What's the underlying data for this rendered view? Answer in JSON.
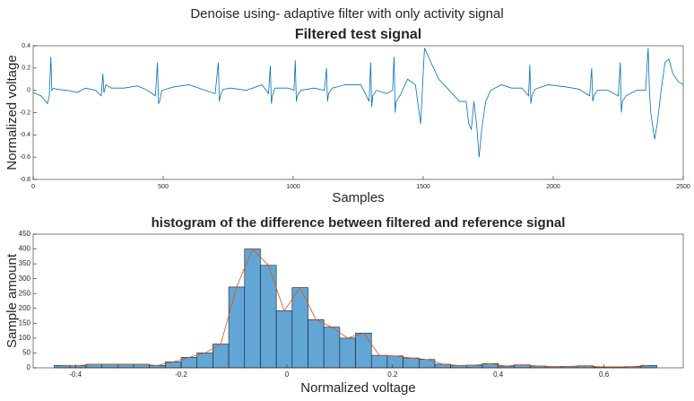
{
  "title": "Denoise using- adaptive filter with only activity signal",
  "chart_data": [
    {
      "type": "line",
      "title": "Filtered test signal",
      "x_label": "Samples",
      "y_label": "Normalized voltage",
      "color": "#0072bd",
      "x": [
        0,
        30,
        55,
        62,
        68,
        72,
        78,
        90,
        130,
        170,
        200,
        240,
        262,
        268,
        272,
        280,
        300,
        350,
        400,
        440,
        470,
        478,
        482,
        486,
        495,
        540,
        600,
        660,
        700,
        712,
        716,
        720,
        730,
        760,
        820,
        880,
        905,
        912,
        916,
        920,
        930,
        980,
        1003,
        1008,
        1012,
        1016,
        1030,
        1080,
        1120,
        1128,
        1132,
        1136,
        1150,
        1200,
        1260,
        1292,
        1298,
        1302,
        1306,
        1320,
        1360,
        1382,
        1388,
        1392,
        1396,
        1410,
        1440,
        1470,
        1490,
        1505,
        1530,
        1560,
        1600,
        1640,
        1665,
        1675,
        1685,
        1695,
        1705,
        1715,
        1725,
        1740,
        1760,
        1800,
        1840,
        1880,
        1905,
        1910,
        1914,
        1918,
        1930,
        1980,
        2050,
        2100,
        2140,
        2148,
        2152,
        2156,
        2170,
        2210,
        2250,
        2258,
        2262,
        2266,
        2280,
        2320,
        2355,
        2365,
        2370,
        2375,
        2390,
        2400,
        2415,
        2430,
        2445,
        2460,
        2480,
        2500
      ],
      "y": [
        -0.02,
        -0.05,
        -0.12,
        -0.05,
        0.3,
        0,
        0.02,
        0.01,
        0,
        -0.02,
        0.02,
        0,
        -0.05,
        0.15,
        -0.02,
        0.05,
        0.02,
        0.02,
        0.04,
        0,
        -0.05,
        0.25,
        -0.12,
        -0.1,
        0,
        0.03,
        0.05,
        0,
        -0.03,
        0.25,
        -0.1,
        -0.05,
        0.01,
        0.02,
        0,
        0.05,
        -0.03,
        0.22,
        -0.12,
        -0.05,
        0.02,
        0.02,
        0,
        0.27,
        -0.1,
        -0.05,
        0,
        0.02,
        0,
        0.2,
        -0.1,
        -0.03,
        0.02,
        0.05,
        0.05,
        -0.1,
        0.25,
        -0.15,
        -0.05,
        0,
        -0.03,
        0,
        0.3,
        -0.2,
        -0.1,
        -0.05,
        0.1,
        0.05,
        -0.3,
        0.38,
        0.25,
        0.1,
        0,
        -0.1,
        -0.1,
        -0.3,
        -0.35,
        -0.1,
        -0.3,
        -0.6,
        -0.35,
        -0.1,
        0,
        0.05,
        0.02,
        0.02,
        -0.05,
        0.23,
        -0.12,
        -0.05,
        0.01,
        0.05,
        0.03,
        0.01,
        -0.05,
        0.2,
        -0.1,
        -0.05,
        0,
        0,
        -0.05,
        0.25,
        -0.2,
        -0.1,
        -0.05,
        0,
        0,
        0.38,
        0,
        -0.2,
        -0.44,
        -0.3,
        0,
        0.25,
        0.28,
        0.15,
        0.08,
        0.05
      ],
      "xlim": [
        0,
        2500
      ],
      "xticks": [
        0,
        500,
        1000,
        1500,
        2000,
        2500
      ],
      "ylim": [
        -0.8,
        0.4
      ],
      "yticks": [
        -0.8,
        -0.6,
        -0.4,
        -0.2,
        0,
        0.2,
        0.4
      ]
    },
    {
      "type": "histogram",
      "title": "histogram of the difference between filtered and reference signal",
      "x_label": "Normalized voltage",
      "y_label": "Sample amount",
      "color": "#62a6d6",
      "edge_color": "#1a1a1a",
      "polygon_color": "#d95319",
      "bins": [
        -0.44,
        -0.41,
        -0.38,
        -0.35,
        -0.32,
        -0.29,
        -0.26,
        -0.23,
        -0.2,
        -0.17,
        -0.14,
        -0.11,
        -0.08,
        -0.05,
        -0.02,
        0.01,
        0.04,
        0.07,
        0.1,
        0.13,
        0.16,
        0.19,
        0.22,
        0.25,
        0.28,
        0.31,
        0.34,
        0.37,
        0.4,
        0.43,
        0.46,
        0.49,
        0.52,
        0.55,
        0.58,
        0.61,
        0.64,
        0.67,
        0.7
      ],
      "counts": [
        8,
        7,
        12,
        12,
        12,
        12,
        8,
        20,
        35,
        50,
        80,
        272,
        400,
        345,
        192,
        270,
        162,
        137,
        100,
        117,
        42,
        40,
        33,
        28,
        12,
        8,
        9,
        14,
        6,
        10,
        6,
        4,
        5,
        7,
        3,
        3,
        4,
        8
      ],
      "xlim": [
        -0.48,
        0.75
      ],
      "xticks": [
        -0.4,
        -0.2,
        0,
        0.2,
        0.4,
        0.6
      ],
      "ylim": [
        0,
        450
      ],
      "yticks": [
        0,
        50,
        100,
        150,
        200,
        250,
        300,
        350,
        400,
        450
      ]
    }
  ]
}
